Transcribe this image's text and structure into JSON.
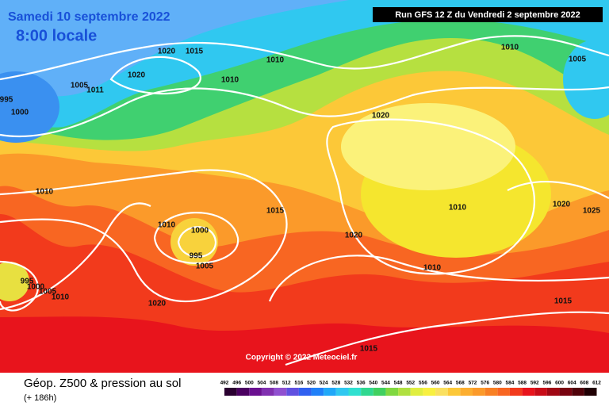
{
  "header": {
    "date": "Samedi 10 septembre 2022",
    "time": "8:00 locale",
    "run": "Run GFS 12 Z du Vendredi 2 septembre 2022"
  },
  "isobar_labels": [
    1020,
    1015,
    1010,
    1020,
    1010,
    1005,
    1011,
    995,
    1000,
    1020,
    1010,
    1005,
    1010,
    1015,
    1010,
    1000,
    995,
    1005,
    1010,
    1020,
    1025,
    1020,
    1010,
    1020,
    1015,
    1015,
    995,
    1000,
    1005,
    1010
  ],
  "copyright": "Copyright © 2022 Meteociel.fr",
  "footer": {
    "title": "Géop. Z500 & pression au sol",
    "lead": "(+ 186h)"
  },
  "legend": {
    "values": [
      492,
      496,
      500,
      504,
      508,
      512,
      516,
      520,
      524,
      528,
      532,
      536,
      540,
      544,
      548,
      552,
      556,
      560,
      564,
      568,
      572,
      576,
      580,
      584,
      588,
      592,
      596,
      600,
      604,
      608,
      612
    ]
  }
}
